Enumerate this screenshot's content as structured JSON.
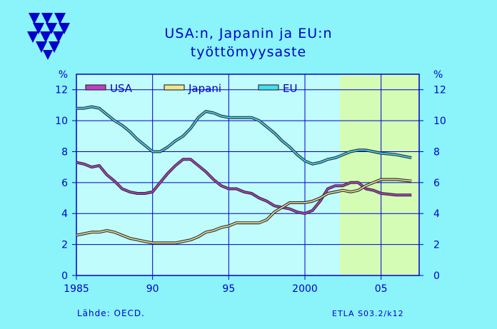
{
  "slide": {
    "title_line1": "USA:n,  Japanin  ja  EU:n",
    "title_line2": "työttömyysaste",
    "source": "Lähde:    OECD.",
    "code": "ETLA S03.2/k12",
    "colors": {
      "background": "#8AF4FA",
      "text": "#0000CC",
      "axis": "#0000CC",
      "forecast_band": "#D4FCB4",
      "plot_area": "#C0FCFC"
    }
  },
  "chart_data": {
    "type": "line",
    "title": "USA:n,  Japanin  ja  EU:n työttömyysaste",
    "ylabel": "%",
    "ylabel_right": "%",
    "xlim": [
      1985,
      2007.5
    ],
    "ylim": [
      0,
      13
    ],
    "x_ticks": [
      1985,
      1990,
      1995,
      2000,
      2005
    ],
    "x_tick_labels": [
      "1985",
      "90",
      "95",
      "2000",
      "05"
    ],
    "y_ticks": [
      0,
      2,
      4,
      6,
      8,
      10,
      12
    ],
    "y_tick_labels": [
      "0",
      "2",
      "4",
      "6",
      "8",
      "10",
      "12"
    ],
    "grid": true,
    "legend_position": "top-left",
    "forecast_region": [
      2002.3,
      2007.5
    ],
    "series": [
      {
        "name": "USA",
        "color": "#C040C0",
        "points": [
          [
            1985,
            7.3
          ],
          [
            1985.5,
            7.2
          ],
          [
            1986,
            7.0
          ],
          [
            1986.5,
            7.1
          ],
          [
            1987,
            6.5
          ],
          [
            1987.5,
            6.1
          ],
          [
            1988,
            5.6
          ],
          [
            1988.5,
            5.4
          ],
          [
            1989,
            5.3
          ],
          [
            1989.5,
            5.3
          ],
          [
            1990,
            5.4
          ],
          [
            1990.5,
            6.0
          ],
          [
            1991,
            6.6
          ],
          [
            1991.5,
            7.1
          ],
          [
            1992,
            7.5
          ],
          [
            1992.5,
            7.5
          ],
          [
            1993,
            7.1
          ],
          [
            1993.5,
            6.7
          ],
          [
            1994,
            6.2
          ],
          [
            1994.5,
            5.8
          ],
          [
            1995,
            5.6
          ],
          [
            1995.5,
            5.6
          ],
          [
            1996,
            5.4
          ],
          [
            1996.5,
            5.3
          ],
          [
            1997,
            5.0
          ],
          [
            1997.5,
            4.8
          ],
          [
            1998,
            4.5
          ],
          [
            1998.5,
            4.4
          ],
          [
            1999,
            4.3
          ],
          [
            1999.5,
            4.1
          ],
          [
            2000,
            4.0
          ],
          [
            2000.5,
            4.2
          ],
          [
            2001,
            4.8
          ],
          [
            2001.5,
            5.6
          ],
          [
            2002,
            5.8
          ],
          [
            2002.5,
            5.8
          ],
          [
            2003,
            6.0
          ],
          [
            2003.5,
            6.0
          ],
          [
            2004,
            5.6
          ],
          [
            2004.5,
            5.5
          ],
          [
            2005,
            5.3
          ],
          [
            2006,
            5.2
          ],
          [
            2007,
            5.2
          ]
        ]
      },
      {
        "name": "Japani",
        "color": "#F0E68C",
        "points": [
          [
            1985,
            2.6
          ],
          [
            1985.5,
            2.7
          ],
          [
            1986,
            2.8
          ],
          [
            1986.5,
            2.8
          ],
          [
            1987,
            2.9
          ],
          [
            1987.5,
            2.8
          ],
          [
            1988,
            2.6
          ],
          [
            1988.5,
            2.4
          ],
          [
            1989,
            2.3
          ],
          [
            1989.5,
            2.2
          ],
          [
            1990,
            2.1
          ],
          [
            1990.5,
            2.1
          ],
          [
            1991,
            2.1
          ],
          [
            1991.5,
            2.1
          ],
          [
            1992,
            2.2
          ],
          [
            1992.5,
            2.3
          ],
          [
            1993,
            2.5
          ],
          [
            1993.5,
            2.8
          ],
          [
            1994,
            2.9
          ],
          [
            1994.5,
            3.1
          ],
          [
            1995,
            3.2
          ],
          [
            1995.5,
            3.4
          ],
          [
            1996,
            3.4
          ],
          [
            1996.5,
            3.4
          ],
          [
            1997,
            3.4
          ],
          [
            1997.5,
            3.6
          ],
          [
            1998,
            4.1
          ],
          [
            1998.5,
            4.4
          ],
          [
            1999,
            4.7
          ],
          [
            1999.5,
            4.7
          ],
          [
            2000,
            4.7
          ],
          [
            2000.5,
            4.8
          ],
          [
            2001,
            5.0
          ],
          [
            2001.5,
            5.3
          ],
          [
            2002,
            5.4
          ],
          [
            2002.5,
            5.5
          ],
          [
            2003,
            5.4
          ],
          [
            2003.5,
            5.5
          ],
          [
            2004,
            5.8
          ],
          [
            2004.5,
            6.0
          ],
          [
            2005,
            6.2
          ],
          [
            2006,
            6.2
          ],
          [
            2007,
            6.1
          ]
        ]
      },
      {
        "name": "EU",
        "color": "#40E0F0",
        "points": [
          [
            1985,
            10.8
          ],
          [
            1985.5,
            10.8
          ],
          [
            1986,
            10.9
          ],
          [
            1986.5,
            10.8
          ],
          [
            1987,
            10.4
          ],
          [
            1987.5,
            10.0
          ],
          [
            1988,
            9.7
          ],
          [
            1988.5,
            9.3
          ],
          [
            1989,
            8.8
          ],
          [
            1989.5,
            8.4
          ],
          [
            1990,
            8.0
          ],
          [
            1990.5,
            8.0
          ],
          [
            1991,
            8.3
          ],
          [
            1991.5,
            8.7
          ],
          [
            1992,
            9.0
          ],
          [
            1992.5,
            9.5
          ],
          [
            1993,
            10.2
          ],
          [
            1993.5,
            10.6
          ],
          [
            1994,
            10.5
          ],
          [
            1994.5,
            10.3
          ],
          [
            1995,
            10.2
          ],
          [
            1995.5,
            10.2
          ],
          [
            1996,
            10.2
          ],
          [
            1996.5,
            10.2
          ],
          [
            1997,
            10.0
          ],
          [
            1997.5,
            9.6
          ],
          [
            1998,
            9.2
          ],
          [
            1998.5,
            8.7
          ],
          [
            1999,
            8.3
          ],
          [
            1999.5,
            7.8
          ],
          [
            2000,
            7.4
          ],
          [
            2000.5,
            7.2
          ],
          [
            2001,
            7.3
          ],
          [
            2001.5,
            7.5
          ],
          [
            2002,
            7.6
          ],
          [
            2002.5,
            7.8
          ],
          [
            2003,
            8.0
          ],
          [
            2003.5,
            8.1
          ],
          [
            2004,
            8.1
          ],
          [
            2004.5,
            8.0
          ],
          [
            2005,
            7.9
          ],
          [
            2006,
            7.8
          ],
          [
            2007,
            7.6
          ]
        ]
      }
    ]
  }
}
